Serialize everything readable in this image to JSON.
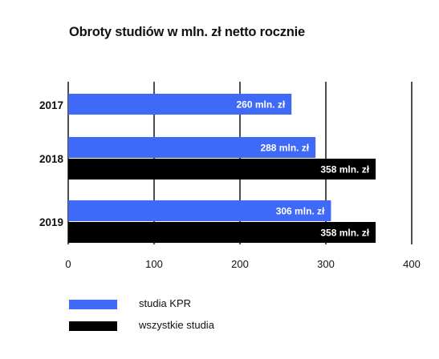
{
  "chart_data": {
    "type": "bar",
    "orientation": "horizontal",
    "title": "Obroty studiów w mln. zł netto rocznie",
    "categories": [
      "2017",
      "2018",
      "2019"
    ],
    "series": [
      {
        "name": "studia KPR",
        "color": "#3e6af7",
        "values": [
          260,
          288,
          306
        ],
        "labels": [
          "260 mln. zł",
          "288 mln. zł",
          "306 mln. zł"
        ]
      },
      {
        "name": "wszystkie studia",
        "color": "#000000",
        "values": [
          null,
          358,
          358
        ],
        "labels": [
          "",
          "358 mln. zł",
          "358 mln. zł"
        ]
      }
    ],
    "xticks": [
      "0",
      "100",
      "200",
      "300",
      "400"
    ],
    "xlim": [
      0,
      400
    ],
    "grid": true,
    "legend_position": "bottom-left"
  }
}
